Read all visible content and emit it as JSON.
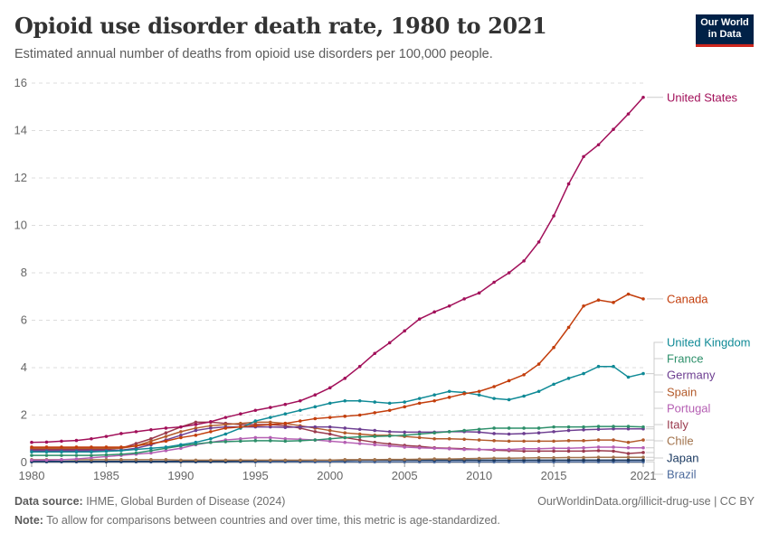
{
  "header": {
    "title": "Opioid use disorder death rate, 1980 to 2021",
    "subtitle": "Estimated annual number of deaths from opioid use disorders per 100,000 people.",
    "logo_line1": "Our World",
    "logo_line2": "in Data"
  },
  "footer": {
    "source_label": "Data source:",
    "source_text": " IHME, Global Burden of Disease (2024)",
    "note_label": "Note:",
    "note_text": " To allow for comparisons between countries and over time, this metric is age-standardized.",
    "url_text": "OurWorldinData.org/illicit-drug-use | CC BY"
  },
  "chart_data": {
    "type": "line",
    "title": "Opioid use disorder death rate, 1980 to 2021",
    "subtitle": "Estimated annual number of deaths from opioid use disorders per 100,000 people.",
    "xlabel": "",
    "ylabel": "",
    "xlim": [
      1980,
      2021
    ],
    "ylim": [
      0,
      16
    ],
    "yticks": [
      0,
      2,
      4,
      6,
      8,
      10,
      12,
      14,
      16
    ],
    "xticks": [
      1980,
      1985,
      1990,
      1995,
      2000,
      2005,
      2010,
      2015,
      2021
    ],
    "grid": "horizontal-dashed",
    "legend": "right-inline-labels",
    "x": [
      1980,
      1981,
      1982,
      1983,
      1984,
      1985,
      1986,
      1987,
      1988,
      1989,
      1990,
      1991,
      1992,
      1993,
      1994,
      1995,
      1996,
      1997,
      1998,
      1999,
      2000,
      2001,
      2002,
      2003,
      2004,
      2005,
      2006,
      2007,
      2008,
      2009,
      2010,
      2011,
      2012,
      2013,
      2014,
      2015,
      2016,
      2017,
      2018,
      2019,
      2020,
      2021
    ],
    "series": [
      {
        "name": "United States",
        "color": "#a2105a",
        "values": [
          0.85,
          0.86,
          0.9,
          0.93,
          1.0,
          1.1,
          1.22,
          1.3,
          1.38,
          1.45,
          1.5,
          1.6,
          1.72,
          1.9,
          2.05,
          2.2,
          2.32,
          2.45,
          2.6,
          2.85,
          3.15,
          3.55,
          4.05,
          4.6,
          5.05,
          5.55,
          6.05,
          6.35,
          6.6,
          6.9,
          7.15,
          7.6,
          8.0,
          8.5,
          9.3,
          10.4,
          11.75,
          12.9,
          13.4,
          14.05,
          14.7,
          15.4
        ]
      },
      {
        "name": "Canada",
        "color": "#c33e0c",
        "values": [
          0.65,
          0.65,
          0.65,
          0.65,
          0.65,
          0.65,
          0.65,
          0.7,
          0.8,
          0.9,
          1.05,
          1.15,
          1.3,
          1.45,
          1.5,
          1.55,
          1.6,
          1.65,
          1.75,
          1.85,
          1.9,
          1.95,
          2.0,
          2.1,
          2.2,
          2.35,
          2.5,
          2.6,
          2.75,
          2.9,
          3.0,
          3.2,
          3.45,
          3.7,
          4.15,
          4.85,
          5.7,
          6.6,
          6.85,
          6.75,
          7.1,
          6.9
        ]
      },
      {
        "name": "United Kingdom",
        "color": "#0f8a96",
        "values": [
          0.45,
          0.45,
          0.45,
          0.45,
          0.45,
          0.47,
          0.5,
          0.55,
          0.6,
          0.65,
          0.75,
          0.85,
          1.0,
          1.2,
          1.45,
          1.75,
          1.9,
          2.05,
          2.2,
          2.35,
          2.5,
          2.6,
          2.6,
          2.55,
          2.5,
          2.55,
          2.7,
          2.85,
          3.0,
          2.95,
          2.85,
          2.7,
          2.65,
          2.8,
          3.0,
          3.3,
          3.55,
          3.75,
          4.05,
          4.05,
          3.6,
          3.75
        ]
      },
      {
        "name": "France",
        "color": "#2d8f6a",
        "values": [
          0.3,
          0.3,
          0.3,
          0.3,
          0.3,
          0.32,
          0.35,
          0.4,
          0.5,
          0.6,
          0.7,
          0.78,
          0.85,
          0.88,
          0.9,
          0.92,
          0.92,
          0.9,
          0.92,
          0.95,
          1.0,
          1.05,
          1.08,
          1.1,
          1.12,
          1.15,
          1.2,
          1.25,
          1.3,
          1.35,
          1.4,
          1.45,
          1.45,
          1.45,
          1.45,
          1.5,
          1.5,
          1.5,
          1.52,
          1.52,
          1.52,
          1.5
        ]
      },
      {
        "name": "Germany",
        "color": "#6d3e91",
        "values": [
          0.5,
          0.5,
          0.5,
          0.5,
          0.5,
          0.5,
          0.52,
          0.6,
          0.75,
          0.95,
          1.15,
          1.35,
          1.45,
          1.5,
          1.5,
          1.5,
          1.5,
          1.48,
          1.5,
          1.5,
          1.5,
          1.45,
          1.4,
          1.35,
          1.3,
          1.28,
          1.28,
          1.28,
          1.3,
          1.3,
          1.28,
          1.22,
          1.2,
          1.22,
          1.25,
          1.3,
          1.35,
          1.38,
          1.4,
          1.42,
          1.42,
          1.42
        ]
      },
      {
        "name": "Spain",
        "color": "#b35a2a",
        "values": [
          0.6,
          0.6,
          0.6,
          0.6,
          0.6,
          0.6,
          0.6,
          0.7,
          0.9,
          1.1,
          1.3,
          1.45,
          1.55,
          1.6,
          1.65,
          1.7,
          1.7,
          1.65,
          1.55,
          1.45,
          1.35,
          1.25,
          1.2,
          1.15,
          1.15,
          1.1,
          1.05,
          1.0,
          1.0,
          0.98,
          0.95,
          0.92,
          0.9,
          0.9,
          0.9,
          0.9,
          0.92,
          0.92,
          0.95,
          0.95,
          0.85,
          0.95
        ]
      },
      {
        "name": "Portugal",
        "color": "#b55fb3",
        "values": [
          0.1,
          0.1,
          0.12,
          0.15,
          0.2,
          0.25,
          0.3,
          0.35,
          0.4,
          0.5,
          0.6,
          0.75,
          0.85,
          0.95,
          1.0,
          1.05,
          1.05,
          1.0,
          0.98,
          0.95,
          0.9,
          0.85,
          0.8,
          0.75,
          0.7,
          0.65,
          0.62,
          0.6,
          0.58,
          0.55,
          0.55,
          0.55,
          0.55,
          0.58,
          0.58,
          0.6,
          0.6,
          0.62,
          0.65,
          0.65,
          0.62,
          0.62
        ]
      },
      {
        "name": "Italy",
        "color": "#9a3a4d",
        "values": [
          0.55,
          0.55,
          0.55,
          0.55,
          0.55,
          0.55,
          0.6,
          0.8,
          1.0,
          1.25,
          1.5,
          1.7,
          1.7,
          1.65,
          1.6,
          1.6,
          1.6,
          1.55,
          1.45,
          1.3,
          1.2,
          1.05,
          0.95,
          0.85,
          0.78,
          0.72,
          0.68,
          0.62,
          0.6,
          0.58,
          0.55,
          0.52,
          0.5,
          0.48,
          0.48,
          0.48,
          0.48,
          0.48,
          0.5,
          0.48,
          0.38,
          0.42
        ]
      },
      {
        "name": "Chile",
        "color": "#a2734c",
        "values": [
          0.12,
          0.12,
          0.12,
          0.12,
          0.12,
          0.12,
          0.12,
          0.12,
          0.12,
          0.12,
          0.1,
          0.1,
          0.1,
          0.1,
          0.1,
          0.1,
          0.1,
          0.1,
          0.1,
          0.1,
          0.1,
          0.12,
          0.12,
          0.12,
          0.13,
          0.13,
          0.14,
          0.15,
          0.15,
          0.16,
          0.17,
          0.18,
          0.18,
          0.19,
          0.2,
          0.2,
          0.21,
          0.21,
          0.22,
          0.22,
          0.22,
          0.22
        ]
      },
      {
        "name": "Japan",
        "color": "#18375f",
        "values": [
          0.05,
          0.05,
          0.05,
          0.05,
          0.05,
          0.05,
          0.05,
          0.05,
          0.05,
          0.05,
          0.05,
          0.05,
          0.05,
          0.05,
          0.06,
          0.07,
          0.08,
          0.08,
          0.08,
          0.09,
          0.09,
          0.09,
          0.1,
          0.1,
          0.1,
          0.1,
          0.1,
          0.1,
          0.1,
          0.1,
          0.1,
          0.1,
          0.1,
          0.1,
          0.1,
          0.1,
          0.1,
          0.1,
          0.1,
          0.1,
          0.1,
          0.1
        ]
      },
      {
        "name": "Brazil",
        "color": "#4c6a9c",
        "values": [
          0.03,
          0.03,
          0.03,
          0.03,
          0.03,
          0.03,
          0.03,
          0.03,
          0.03,
          0.03,
          0.03,
          0.03,
          0.03,
          0.03,
          0.03,
          0.03,
          0.03,
          0.03,
          0.03,
          0.03,
          0.03,
          0.03,
          0.03,
          0.03,
          0.03,
          0.03,
          0.03,
          0.03,
          0.03,
          0.03,
          0.03,
          0.03,
          0.03,
          0.03,
          0.03,
          0.03,
          0.03,
          0.03,
          0.03,
          0.03,
          0.03,
          0.03
        ]
      }
    ]
  }
}
